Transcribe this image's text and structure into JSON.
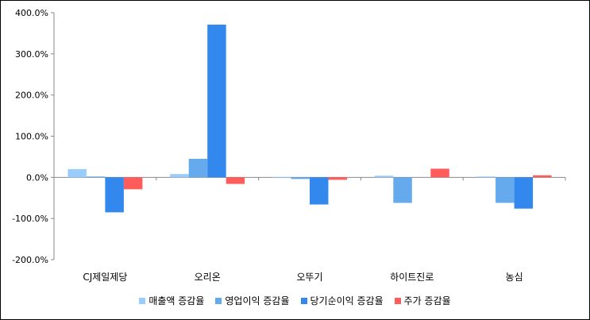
{
  "chart_data": {
    "type": "bar",
    "categories": [
      "CJ제일제당",
      "오리온",
      "오뚜기",
      "하이트진로",
      "농심"
    ],
    "series": [
      {
        "name": "매출액 증감율",
        "color": "#99ccff",
        "values": [
          20,
          8,
          -1,
          4,
          2
        ]
      },
      {
        "name": "영업이익 증감율",
        "color": "#66aaee",
        "values": [
          2,
          45,
          -4,
          -62,
          -62
        ]
      },
      {
        "name": "당기순이익 증감율",
        "color": "#3388ee",
        "values": [
          -85,
          371,
          -66,
          0,
          -76
        ]
      },
      {
        "name": "주가 증감율",
        "color": "#ff5c5c",
        "values": [
          -29,
          -16,
          -6,
          21,
          5
        ]
      }
    ],
    "ylim": [
      -200,
      400
    ],
    "yticks": [
      "400.0%",
      "300.0%",
      "200.0%",
      "100.0%",
      "0.0%",
      "-100.0%",
      "-200.0%"
    ],
    "legend_position": "bottom",
    "grid": false
  }
}
